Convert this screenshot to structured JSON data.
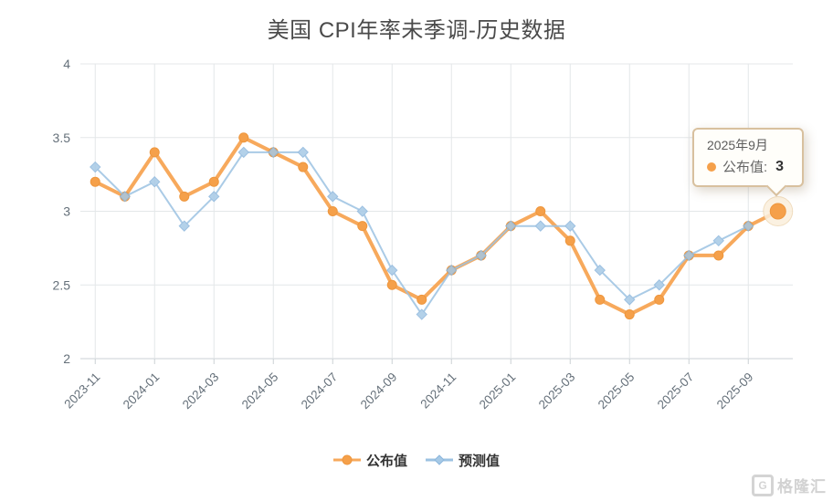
{
  "title": "美国 CPI年率未季调-历史数据",
  "chart_data": {
    "type": "line",
    "x_tick_labels": [
      "2023-11",
      "2024-01",
      "2024-03",
      "2024-05",
      "2024-07",
      "2024-09",
      "2024-11",
      "2025-01",
      "2025-03",
      "2025-05",
      "2025-07",
      "2025-09"
    ],
    "x_label_interval": 2,
    "n_points": 24,
    "y_ticks": [
      4,
      3.5,
      3,
      2.5,
      2
    ],
    "ylim": [
      2,
      4
    ],
    "grid": true,
    "legend_position": "bottom-center",
    "series": [
      {
        "name": "公布值",
        "symbol": "circle",
        "color": "#F5A04A",
        "line_color": "#F7A95C",
        "marker_stroke": "#EE963D",
        "line_width": 4,
        "values": [
          3.2,
          3.1,
          3.4,
          3.1,
          3.2,
          3.5,
          3.4,
          3.3,
          3.0,
          2.9,
          2.5,
          2.4,
          2.6,
          2.7,
          2.9,
          3.0,
          2.8,
          2.4,
          2.3,
          2.4,
          2.7,
          2.7,
          2.9,
          3.0
        ]
      },
      {
        "name": "预测值",
        "symbol": "diamond",
        "color": "#A6C9E6",
        "line_color": "#9CC2E2",
        "marker_stroke": "#8BB6DC",
        "line_width": 2,
        "values": [
          3.3,
          3.1,
          3.2,
          2.9,
          3.1,
          3.4,
          3.4,
          3.4,
          3.1,
          3.0,
          2.6,
          2.3,
          2.6,
          2.7,
          2.9,
          2.9,
          2.9,
          2.6,
          2.4,
          2.5,
          2.7,
          2.8,
          2.9,
          null
        ]
      }
    ],
    "highlight": {
      "series_index": 0,
      "point_index": 23,
      "value": 3.0
    }
  },
  "tooltip": {
    "date": "2025年9月",
    "series_label": "公布值:",
    "value": "3",
    "dot_color": "#F5A04A",
    "border_color": "#d8c09e"
  },
  "axis_style": {
    "grid_color": "#e4e7e9",
    "axis_line_color": "#cbd0d4",
    "label_color": "#65707a"
  },
  "watermark": {
    "icon": "G",
    "text": "格隆汇"
  }
}
